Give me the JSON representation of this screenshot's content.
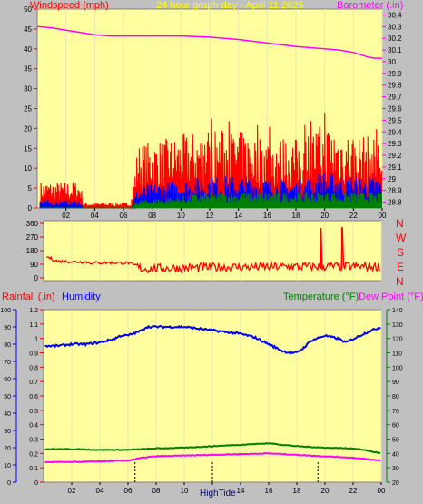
{
  "header": {
    "left_title": "Windspeed (mph)",
    "center_title": "24 hour graph day - April 11 2025",
    "right_title": "Barometer (.in)"
  },
  "mid": {
    "compass_labels": [
      "N",
      "W",
      "S",
      "E",
      "N"
    ]
  },
  "bottom": {
    "rain_label": "Rainfall (.in)",
    "humidity_label": "Humidity",
    "temp_label": "Temperature (°F)",
    "dew_label": "Dew Point (°F)",
    "marker_label": "HighTide"
  },
  "colors": {
    "panel_bg": "#ffffa0",
    "frame_bg": "#c0c0c0",
    "wind_speed": "#ff0000",
    "wind_avg": "#0000ff",
    "wind_low": "#008000",
    "barometer": "#ff00ff",
    "direction": "#ff0000",
    "humidity": "#0000ff",
    "temperature": "#008000",
    "dew_point": "#ff00ff",
    "title_yellow": "#ffff00",
    "axis_red": "#ff0000",
    "axis_blue": "#0000ff",
    "axis_green": "#008000",
    "axis_magenta": "#ff00ff"
  },
  "chart_data": [
    {
      "type": "line",
      "name": "wind",
      "x_ticks": [
        "02",
        "04",
        "06",
        "08",
        "10",
        "12",
        "14",
        "16",
        "18",
        "20",
        "22",
        "00"
      ],
      "xlim": [
        0,
        24
      ],
      "ylim_left": [
        0,
        50
      ],
      "y_ticks_left": [
        "0",
        "5",
        "10",
        "15",
        "20",
        "25",
        "30",
        "35",
        "40",
        "45",
        "50"
      ],
      "ylim_right": [
        28.75,
        30.45
      ],
      "y_ticks_right": [
        "28.8",
        "28.9",
        "29",
        "29.1",
        "29.2",
        "29.3",
        "29.4",
        "29.5",
        "29.6",
        "29.7",
        "29.8",
        "29.9",
        "30",
        "30.1",
        "30.2",
        "30.3",
        "30.4"
      ],
      "gust_profile": {
        "x": [
          0,
          3,
          3.2,
          6.5,
          7,
          9,
          12,
          15,
          18,
          20,
          22,
          24
        ],
        "y": [
          5,
          5,
          1,
          1,
          12,
          13,
          15,
          14,
          13,
          16,
          14,
          13
        ]
      },
      "avg_profile": {
        "x": [
          0,
          3,
          3.2,
          6.5,
          7,
          9,
          12,
          15,
          18,
          20,
          22,
          24
        ],
        "y": [
          1.5,
          1.5,
          0,
          0,
          4,
          5,
          6,
          6,
          5,
          7,
          6,
          6
        ]
      },
      "low_profile": {
        "x": [
          0,
          3,
          3.2,
          6.5,
          7,
          9,
          12,
          15,
          18,
          20,
          22,
          24
        ],
        "y": [
          0,
          0,
          0,
          0,
          1.5,
          2,
          3,
          3,
          3,
          3,
          3,
          3
        ]
      },
      "barometer": {
        "x": [
          0,
          1,
          2,
          3,
          4,
          5,
          6,
          8,
          10,
          12,
          14,
          16,
          18,
          19,
          20,
          21,
          22,
          22.5,
          23,
          23.5,
          24
        ],
        "y": [
          30.3,
          30.29,
          30.27,
          30.25,
          30.23,
          30.22,
          30.22,
          30.22,
          30.22,
          30.21,
          30.19,
          30.16,
          30.13,
          30.12,
          30.11,
          30.1,
          30.08,
          30.06,
          30.04,
          30.03,
          30.03
        ]
      }
    },
    {
      "type": "scatter",
      "name": "wind_direction",
      "xlim": [
        0,
        24
      ],
      "ylim": [
        0,
        360
      ],
      "y_ticks": [
        "0",
        "90",
        "180",
        "270",
        "360"
      ],
      "profile": {
        "x": [
          0.2,
          1,
          3,
          3.3,
          6,
          6.5,
          7,
          12,
          18,
          24
        ],
        "y": [
          140,
          110,
          105,
          100,
          100,
          80,
          60,
          70,
          75,
          75
        ]
      },
      "spikes": [
        {
          "x": 19.7,
          "y": 330
        },
        {
          "x": 21.2,
          "y": 335
        }
      ]
    },
    {
      "type": "line",
      "name": "climate",
      "xlim": [
        0,
        24
      ],
      "x_ticks": [
        "02",
        "04",
        "06",
        "08",
        "10",
        "",
        "14",
        "16",
        "18",
        "20",
        "22",
        "00"
      ],
      "ylim_rain": [
        0,
        1.2
      ],
      "y_ticks_rain": [
        "0",
        "0.1",
        "0.2",
        "0.3",
        "0.4",
        "0.5",
        "0.6",
        "0.7",
        "0.8",
        "0.9",
        "1",
        "1.1",
        "1.2"
      ],
      "ylim_humidity": [
        0,
        100
      ],
      "y_ticks_humidity": [
        "0",
        "10",
        "20",
        "30",
        "40",
        "50",
        "60",
        "70",
        "80",
        "90",
        "100"
      ],
      "ylim_temp": [
        20,
        140
      ],
      "y_ticks_temp": [
        "20",
        "30",
        "40",
        "50",
        "60",
        "70",
        "80",
        "90",
        "100",
        "110",
        "120",
        "130",
        "140"
      ],
      "humidity": {
        "x": [
          0,
          1,
          2,
          3,
          4,
          4.5,
          5,
          5.5,
          6,
          7,
          7.3,
          8,
          9,
          10,
          11,
          12,
          13,
          14,
          15,
          16,
          17,
          17.5,
          18,
          18.5,
          19,
          20,
          21,
          21.5,
          22,
          23,
          24
        ],
        "y": [
          79,
          79,
          80,
          80,
          81,
          82,
          83,
          85,
          85,
          88,
          90,
          90,
          90,
          90,
          89,
          88,
          87,
          86,
          84,
          80,
          76,
          75,
          75,
          78,
          82,
          85,
          83,
          81,
          83,
          87,
          90
        ]
      },
      "temperature": {
        "x": [
          0,
          2,
          4,
          6,
          8,
          10,
          12,
          14,
          16,
          17,
          18,
          20,
          22,
          23,
          24
        ],
        "y": [
          43,
          43,
          42.5,
          42.5,
          43.5,
          44,
          45,
          46,
          47,
          46,
          45,
          44,
          43.5,
          42,
          40
        ]
      },
      "dew_point": {
        "x": [
          0,
          2,
          4,
          6,
          7,
          8,
          10,
          12,
          14,
          16,
          18,
          20,
          22,
          23,
          24
        ],
        "y": [
          34,
          34,
          34.5,
          35,
          37,
          38,
          38.5,
          39,
          39.5,
          40,
          39,
          38,
          37,
          36,
          35
        ]
      },
      "markers_x": [
        6.5,
        12,
        19.5
      ]
    }
  ]
}
